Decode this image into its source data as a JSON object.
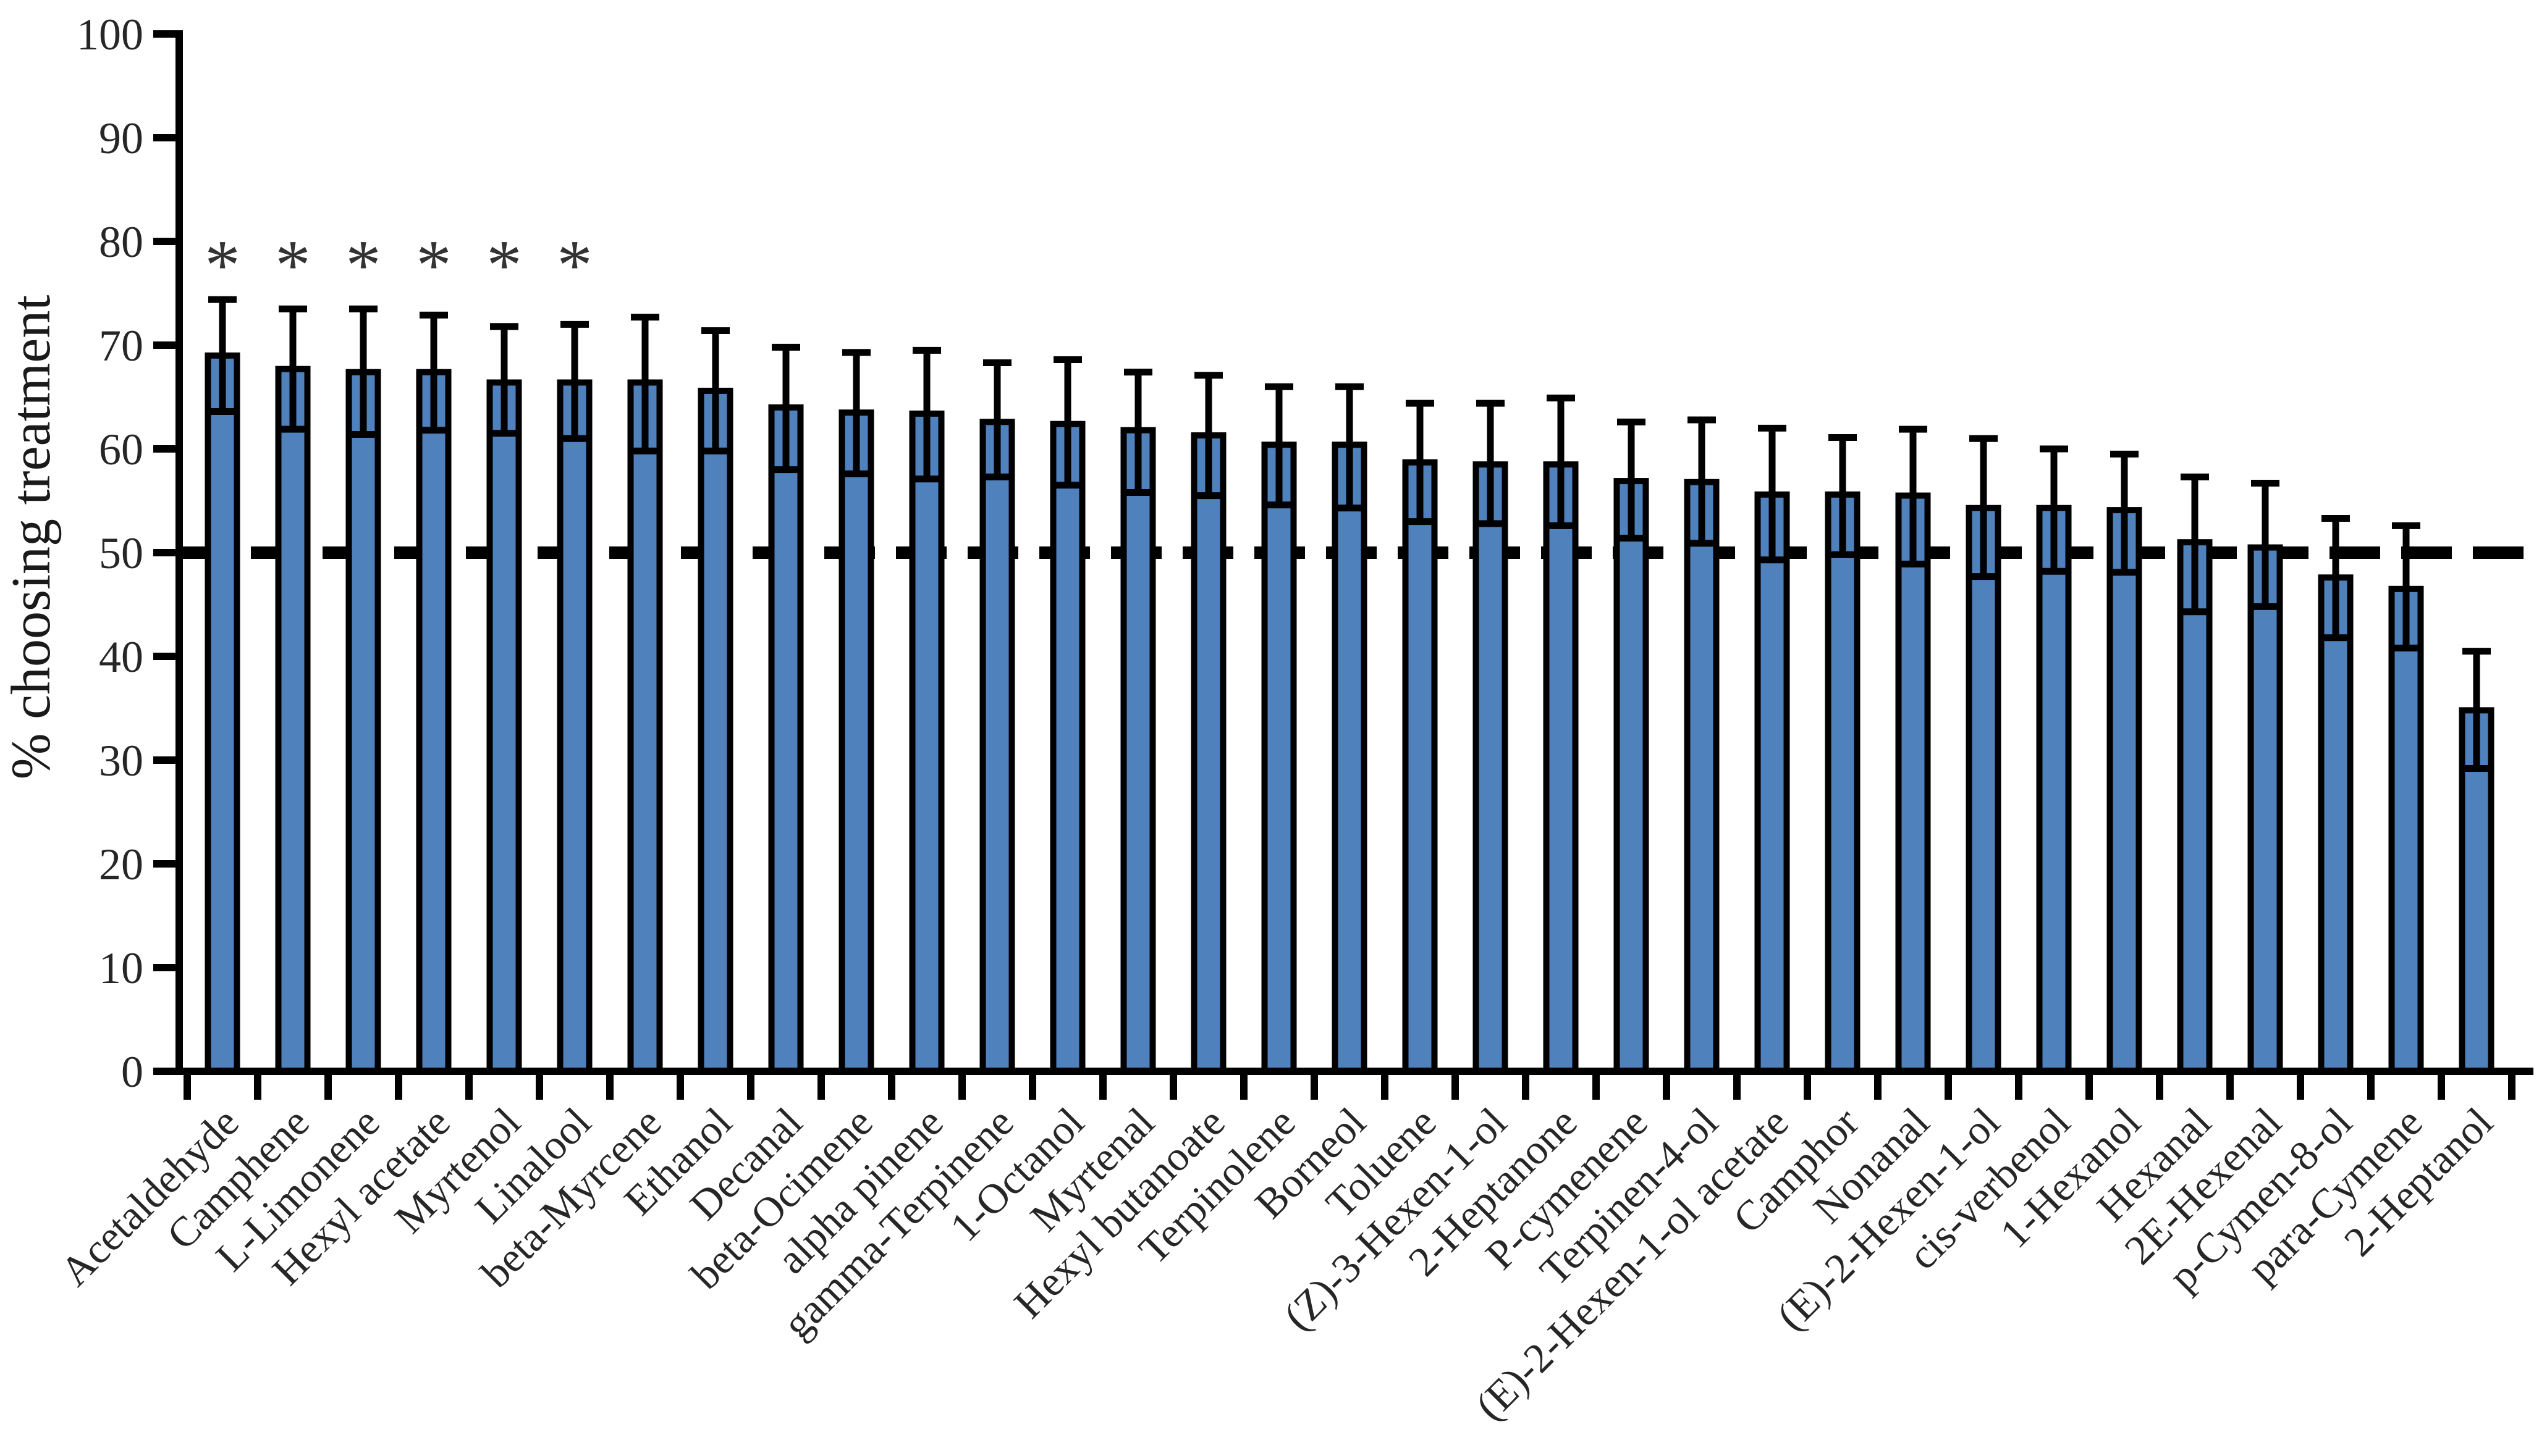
{
  "chart_data": {
    "type": "bar",
    "ylabel": "% choosing treatment",
    "ylim": [
      0,
      100
    ],
    "y_ticks": [
      0,
      10,
      20,
      30,
      40,
      50,
      60,
      70,
      80,
      90,
      100
    ],
    "grid": false,
    "legend": null,
    "reference_line": {
      "value": 50,
      "style": "dashed",
      "color": "#000000"
    },
    "significance_marker": "*",
    "bar_color": "#4F81BD",
    "bar_border_color": "#000000",
    "error_bar_color": "#000000",
    "tick_label_color": "#262626",
    "categories": [
      "Acetaldehyde",
      "Camphene",
      "L-Limonene",
      "Hexyl acetate",
      "Myrtenol",
      "Linalool",
      "beta-Myrcene",
      "Ethanol",
      "Decanal",
      "beta-Ocimene",
      "alpha pinene",
      "gamma-Terpinene",
      "1-Octanol",
      "Myrtenal",
      "Hexyl butanoate",
      "Terpinolene",
      "Borneol",
      "Toluene",
      "(Z)-3-Hexen-1-ol",
      "2-Heptanone",
      "P-cymenene",
      "Terpinen-4-ol",
      "(E)-2-Hexen-1-ol acetate",
      "Camphor",
      "Nonanal",
      "(E)-2-Hexen-1-ol",
      "cis-verbenol",
      "1-Hexanol",
      "Hexanal",
      "2E-Hexenal",
      "p-Cymen-8-ol",
      "para-Cymene",
      "2-Heptanol"
    ],
    "values": [
      69.0,
      67.7,
      67.4,
      67.4,
      66.4,
      66.4,
      66.4,
      65.6,
      64.0,
      63.5,
      63.4,
      62.6,
      62.4,
      61.8,
      61.3,
      60.4,
      60.4,
      58.7,
      58.5,
      58.5,
      56.9,
      56.8,
      55.6,
      55.6,
      55.5,
      54.3,
      54.3,
      54.1,
      51.0,
      50.5,
      47.6,
      46.5,
      34.8
    ],
    "error_whisker_top": [
      74.4,
      73.5,
      73.5,
      72.9,
      71.8,
      72.0,
      72.7,
      71.4,
      69.8,
      69.3,
      69.5,
      68.3,
      68.6,
      67.4,
      67.1,
      66.0,
      66.0,
      64.4,
      64.4,
      64.9,
      62.6,
      62.8,
      62.0,
      61.1,
      61.9,
      61.0,
      60.0,
      59.5,
      57.3,
      56.7,
      53.3,
      52.6,
      40.5
    ],
    "error_whisker_bottom": [
      63.6,
      61.9,
      61.4,
      61.8,
      61.5,
      61.0,
      59.8,
      59.8,
      58.0,
      57.6,
      57.1,
      57.3,
      56.5,
      55.8,
      55.5,
      54.6,
      54.3,
      53.0,
      52.8,
      52.6,
      51.4,
      50.9,
      49.3,
      49.8,
      48.9,
      47.7,
      48.2,
      48.1,
      44.3,
      44.8,
      41.8,
      40.8,
      29.2
    ],
    "significant": [
      true,
      true,
      true,
      true,
      true,
      true,
      false,
      false,
      false,
      false,
      false,
      false,
      false,
      false,
      false,
      false,
      false,
      false,
      false,
      false,
      false,
      false,
      false,
      false,
      false,
      false,
      false,
      false,
      false,
      false,
      false,
      false,
      false
    ]
  }
}
